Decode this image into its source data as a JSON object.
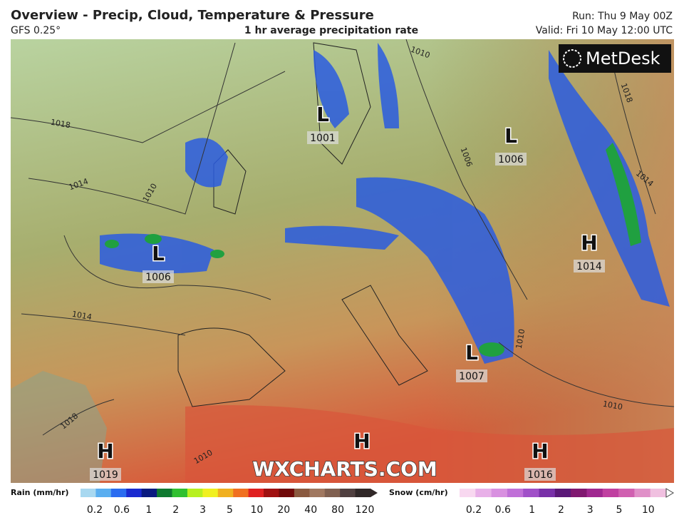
{
  "header": {
    "title": "Overview - Precip, Cloud, Temperature & Pressure",
    "model": "GFS 0.25°",
    "subtitle": "1 hr average precipitation rate",
    "run": "Run: Thu 9 May 00Z",
    "valid": "Valid: Fri 10 May 12:00 UTC"
  },
  "logo": "MetDesk",
  "watermark": "WXCHARTS.COM",
  "pressure_centers": [
    {
      "symbol": "L",
      "value": 1001
    },
    {
      "symbol": "L",
      "value": 1006
    },
    {
      "symbol": "L",
      "value": 1006
    },
    {
      "symbol": "H",
      "value": 1014
    },
    {
      "symbol": "L",
      "value": 1007
    },
    {
      "symbol": "H",
      "value": 1019
    },
    {
      "symbol": "H"
    },
    {
      "symbol": "H",
      "value": 1016
    }
  ],
  "isobar_labels": [
    1018,
    1014,
    1010,
    1014,
    1018,
    1010,
    1010,
    1006,
    1018,
    1014,
    1010,
    1010
  ],
  "legend": {
    "rain": {
      "title": "Rain (mm/hr)",
      "ticks": [
        0.2,
        0.6,
        1,
        2,
        3,
        5,
        10,
        20,
        40,
        80,
        120
      ]
    },
    "snow": {
      "title": "Snow (cm/hr)",
      "ticks": [
        0.2,
        0.6,
        1,
        2,
        3,
        5,
        10
      ]
    }
  }
}
